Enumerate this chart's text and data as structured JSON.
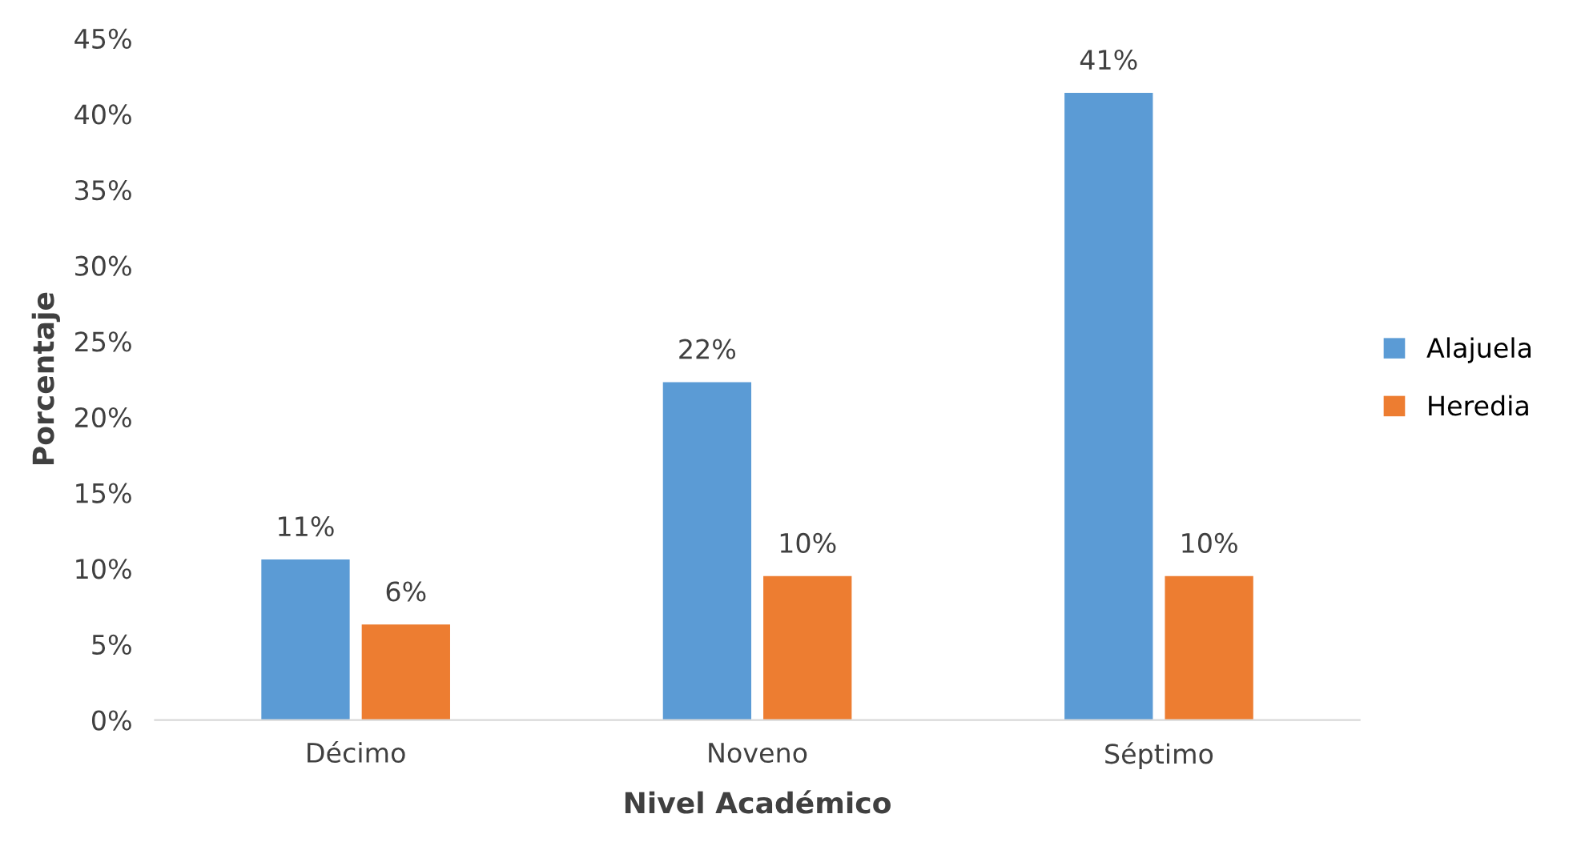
{
  "chart_data": {
    "type": "bar",
    "xlabel": "Nivel Académico",
    "ylabel": "Porcentaje",
    "categories": [
      "Décimo",
      "Noveno",
      "Séptimo"
    ],
    "series": [
      {
        "name": "Alajuela",
        "color": "#5b9bd5",
        "values": [
          10.6,
          22.3,
          41.4
        ],
        "value_labels": [
          "11%",
          "22%",
          "41%"
        ]
      },
      {
        "name": "Heredia",
        "color": "#ed7d31",
        "values": [
          6.3,
          9.5,
          9.5
        ],
        "value_labels": [
          "6%",
          "10%",
          "10%"
        ]
      }
    ],
    "ylim": [
      0,
      45
    ],
    "yticks": [
      {
        "value": 0,
        "label": "0%"
      },
      {
        "value": 5,
        "label": "5%"
      },
      {
        "value": 10,
        "label": "10%"
      },
      {
        "value": 15,
        "label": "15%"
      },
      {
        "value": 20,
        "label": "20%"
      },
      {
        "value": 25,
        "label": "25%"
      },
      {
        "value": 30,
        "label": "30%"
      },
      {
        "value": 35,
        "label": "35%"
      },
      {
        "value": 40,
        "label": "40%"
      },
      {
        "value": 45,
        "label": "45%"
      }
    ],
    "grid": false,
    "legend": "right"
  }
}
